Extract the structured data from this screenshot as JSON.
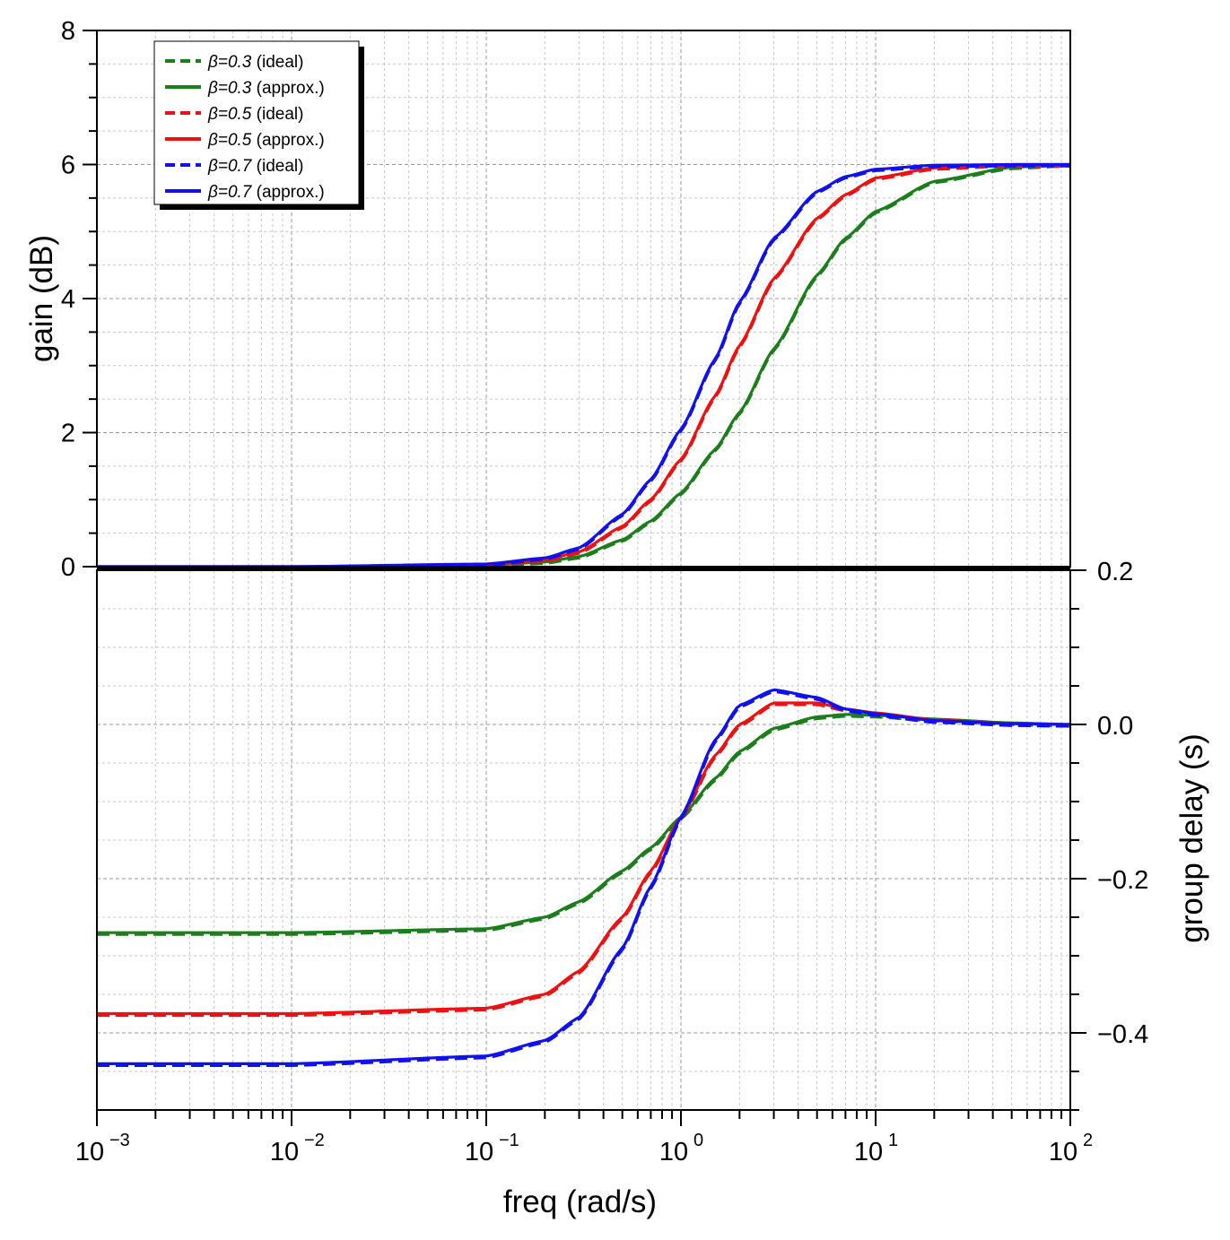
{
  "chart_data": [
    {
      "type": "line",
      "panel": "top",
      "x_scale": "log",
      "xlim": [
        0.001,
        100
      ],
      "ylim": [
        0,
        8
      ],
      "ylabel": "gain (dB)",
      "y_ticks": [
        0,
        2,
        4,
        6,
        8
      ],
      "y_tick_labels": [
        "0",
        "2",
        "4",
        "6",
        "8"
      ],
      "grid": true,
      "series": [
        {
          "name": "β=0.3 (ideal)",
          "beta": 0.3,
          "style": "dashed",
          "color": "#1a7f1a"
        },
        {
          "name": "β=0.3 (approx.)",
          "beta": 0.3,
          "style": "solid",
          "color": "#1a7f1a"
        },
        {
          "name": "β=0.5 (ideal)",
          "beta": 0.5,
          "style": "dashed",
          "color": "#ee1111"
        },
        {
          "name": "β=0.5 (approx.)",
          "beta": 0.5,
          "style": "solid",
          "color": "#ee1111"
        },
        {
          "name": "β=0.7 (ideal)",
          "beta": 0.7,
          "style": "dashed",
          "color": "#1111ee"
        },
        {
          "name": "β=0.7 (approx.)",
          "beta": 0.7,
          "style": "solid",
          "color": "#1111ee"
        }
      ],
      "gain_points": {
        "x": [
          0.001,
          0.01,
          0.1,
          0.2,
          0.3,
          0.5,
          0.7,
          1,
          1.5,
          2,
          3,
          5,
          7,
          10,
          20,
          50,
          100
        ],
        "beta_0.3": [
          0,
          0,
          0.02,
          0.07,
          0.15,
          0.4,
          0.68,
          1.1,
          1.75,
          2.3,
          3.25,
          4.35,
          4.9,
          5.3,
          5.75,
          5.96,
          6.0
        ],
        "beta_0.5": [
          0,
          0,
          0.03,
          0.1,
          0.22,
          0.6,
          1.0,
          1.6,
          2.55,
          3.3,
          4.3,
          5.2,
          5.55,
          5.8,
          5.95,
          6.0,
          6.0
        ],
        "beta_0.7": [
          0,
          0,
          0.04,
          0.13,
          0.28,
          0.78,
          1.3,
          2.05,
          3.1,
          3.95,
          4.9,
          5.6,
          5.82,
          5.93,
          5.99,
          6.0,
          6.0
        ]
      },
      "legend": {
        "placement": "top-left",
        "entries": [
          {
            "symbol": "β",
            "rest": "=0.3",
            "suffix": "(ideal)"
          },
          {
            "symbol": "β",
            "rest": "=0.3",
            "suffix": "(approx.)"
          },
          {
            "symbol": "β",
            "rest": "=0.5",
            "suffix": "(ideal)"
          },
          {
            "symbol": "β",
            "rest": "=0.5",
            "suffix": "(approx.)"
          },
          {
            "symbol": "β",
            "rest": "=0.7",
            "suffix": "(ideal)"
          },
          {
            "symbol": "β",
            "rest": "=0.7",
            "suffix": "(approx.)"
          }
        ]
      }
    },
    {
      "type": "line",
      "panel": "bottom",
      "x_scale": "log",
      "xlim": [
        0.001,
        100
      ],
      "ylim": [
        -0.5,
        0.2
      ],
      "xlabel": "freq (rad/s)",
      "ylabel": "group delay (s)",
      "y_axis_side": "right",
      "y_ticks": [
        0.2,
        0.0,
        -0.2,
        -0.4
      ],
      "y_tick_labels": [
        "0.2",
        "0.0",
        "−0.2",
        "−0.4"
      ],
      "x_tick_labels": [
        {
          "base": "10",
          "exp": "−3"
        },
        {
          "base": "10",
          "exp": "−2"
        },
        {
          "base": "10",
          "exp": "−1"
        },
        {
          "base": "10",
          "exp": "0"
        },
        {
          "base": "10",
          "exp": "1"
        },
        {
          "base": "10",
          "exp": "2"
        }
      ],
      "grid": true,
      "delay_points": {
        "x": [
          0.001,
          0.01,
          0.1,
          0.2,
          0.3,
          0.5,
          0.7,
          1,
          1.5,
          2,
          3,
          5,
          7,
          10,
          20,
          50,
          100
        ],
        "beta_0.3": [
          -0.27,
          -0.27,
          -0.265,
          -0.25,
          -0.23,
          -0.19,
          -0.16,
          -0.12,
          -0.07,
          -0.035,
          -0.005,
          0.01,
          0.013,
          0.012,
          0.007,
          0.002,
          0.0
        ],
        "beta_0.5": [
          -0.375,
          -0.375,
          -0.368,
          -0.35,
          -0.32,
          -0.25,
          -0.19,
          -0.12,
          -0.04,
          0.0,
          0.028,
          0.028,
          0.02,
          0.015,
          0.006,
          0.001,
          0.0
        ],
        "beta_0.7": [
          -0.44,
          -0.44,
          -0.43,
          -0.41,
          -0.38,
          -0.29,
          -0.21,
          -0.12,
          -0.02,
          0.025,
          0.045,
          0.035,
          0.02,
          0.014,
          0.005,
          0.001,
          0.0
        ]
      }
    }
  ]
}
